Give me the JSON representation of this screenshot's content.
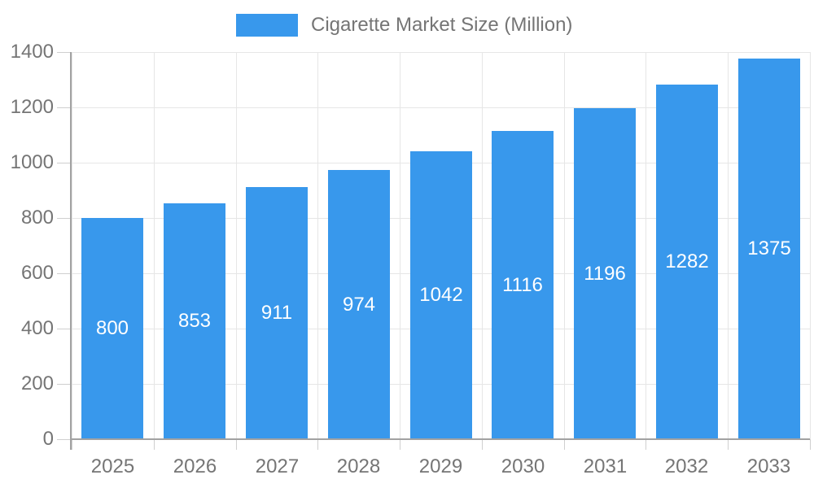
{
  "legend": {
    "label": "Cigarette Market Size (Million)"
  },
  "colors": {
    "bar": "#3898EC",
    "bar_label": "#ffffff",
    "axis_text": "#757575",
    "axis_line": "#a2a2a2",
    "grid_line": "#e6e6e6",
    "tick_mark": "#cfcfcf"
  },
  "chart_data": {
    "type": "bar",
    "title": "Cigarette Market Size (Million)",
    "categories": [
      "2025",
      "2026",
      "2027",
      "2028",
      "2029",
      "2030",
      "2031",
      "2032",
      "2033"
    ],
    "values": [
      800,
      853,
      911,
      974,
      1042,
      1116,
      1196,
      1282,
      1375
    ],
    "xlabel": "",
    "ylabel": "",
    "ylim": [
      0,
      1400
    ],
    "yticks": [
      0,
      200,
      400,
      600,
      800,
      1000,
      1200,
      1400
    ],
    "grid": "horizontal-and-vertical",
    "legend_position": "top",
    "value_labels": "inside-center"
  }
}
